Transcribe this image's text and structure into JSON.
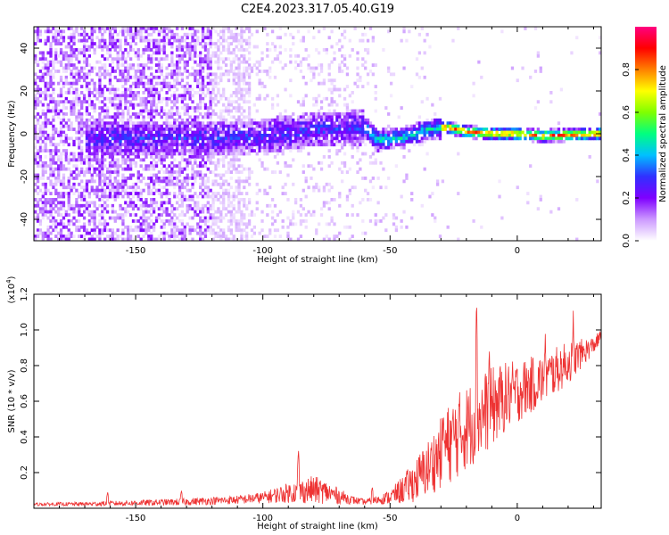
{
  "title": "C2E4.2023.317.05.40.G19",
  "chart_data": [
    {
      "type": "heatmap",
      "title": "",
      "xlabel": "Height of straight line (km)",
      "ylabel": "Frequency (Hz)",
      "xlim": [
        -190,
        33
      ],
      "ylim": [
        -50,
        50
      ],
      "x_ticks": [
        -150,
        -100,
        -50,
        0
      ],
      "y_ticks": [
        -40,
        -20,
        0,
        20,
        40
      ],
      "colorbar": {
        "label": "Normalized spectral amplitude",
        "range": [
          0,
          1
        ],
        "ticks": [
          0.0,
          0.2,
          0.4,
          0.6,
          0.8
        ],
        "colormap": [
          "#ffffff",
          "#cc99ff",
          "#7f00ff",
          "#3030ff",
          "#00c0ff",
          "#00ff80",
          "#80ff00",
          "#ffff00",
          "#ff8000",
          "#ff0000",
          "#ff0080"
        ]
      },
      "signal_track": {
        "x": [
          -165,
          -140,
          -120,
          -100,
          -80,
          -60,
          -55,
          -45,
          -35,
          -28,
          -20,
          -10,
          0,
          10,
          20,
          33
        ],
        "freq": [
          -2,
          -2,
          -2,
          -1,
          2,
          3,
          -3,
          -2,
          2,
          3,
          1,
          0,
          0,
          -1,
          -0.5,
          0
        ]
      }
    },
    {
      "type": "line",
      "title": "",
      "xlabel": "Height of straight line (km)",
      "ylabel": "SNR (10 * v/v)",
      "y_multiplier": "(x10",
      "y_multiplier_exp": "4",
      "y_multiplier_close": ")",
      "xlim": [
        -190,
        33
      ],
      "ylim": [
        0,
        1.2
      ],
      "x_ticks": [
        -150,
        -100,
        -50,
        0
      ],
      "y_ticks": [
        0.2,
        0.4,
        0.6,
        0.8,
        1.0,
        1.2
      ],
      "color": "#ee3333",
      "envelope": {
        "x": [
          -190,
          -170,
          -150,
          -130,
          -110,
          -100,
          -90,
          -80,
          -75,
          -65,
          -60,
          -55,
          -50,
          -45,
          -40,
          -35,
          -30,
          -25,
          -20,
          -15,
          -10,
          -5,
          0,
          10,
          20,
          30,
          33
        ],
        "base": [
          0.02,
          0.02,
          0.025,
          0.03,
          0.04,
          0.05,
          0.07,
          0.08,
          0.07,
          0.04,
          0.03,
          0.04,
          0.05,
          0.08,
          0.12,
          0.18,
          0.25,
          0.32,
          0.38,
          0.44,
          0.5,
          0.56,
          0.6,
          0.68,
          0.78,
          0.9,
          0.95
        ],
        "amp": [
          0.01,
          0.015,
          0.02,
          0.025,
          0.03,
          0.04,
          0.07,
          0.1,
          0.08,
          0.03,
          0.02,
          0.03,
          0.05,
          0.1,
          0.15,
          0.2,
          0.25,
          0.3,
          0.3,
          0.3,
          0.28,
          0.25,
          0.22,
          0.18,
          0.15,
          0.06,
          0.05
        ]
      },
      "peaks": [
        {
          "x": -161,
          "y": 0.09
        },
        {
          "x": -132,
          "y": 0.1
        },
        {
          "x": -86,
          "y": 0.33
        },
        {
          "x": -57,
          "y": 0.12
        },
        {
          "x": -29,
          "y": 0.52
        },
        {
          "x": -16,
          "y": 1.2
        },
        {
          "x": -11,
          "y": 0.92
        },
        {
          "x": 11,
          "y": 1.0
        },
        {
          "x": 22,
          "y": 1.12
        }
      ]
    }
  ]
}
